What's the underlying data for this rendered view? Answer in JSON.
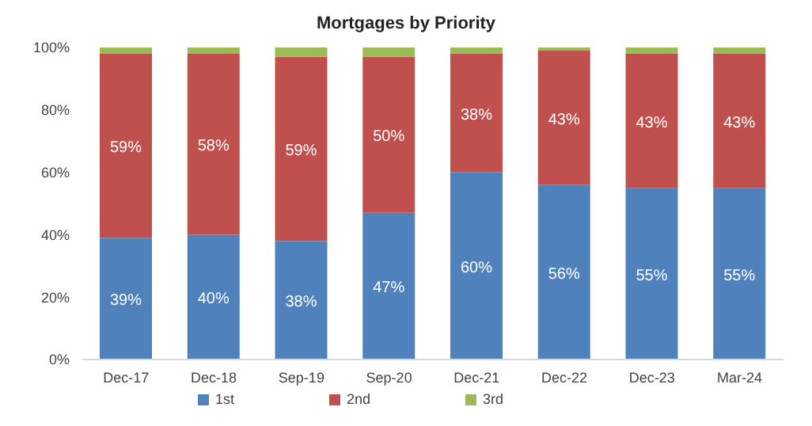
{
  "chart_data": {
    "type": "bar",
    "title": "Mortgages by Priority",
    "stacked": true,
    "categories": [
      "Dec-17",
      "Dec-18",
      "Sep-19",
      "Sep-20",
      "Dec-21",
      "Dec-22",
      "Dec-23",
      "Mar-24"
    ],
    "series": [
      {
        "name": "1st",
        "color": "#4f81bd",
        "values": [
          39,
          40,
          38,
          47,
          60,
          56,
          55,
          55
        ],
        "value_labels": [
          "39%",
          "40%",
          "38%",
          "47%",
          "60%",
          "56%",
          "55%",
          "55%"
        ]
      },
      {
        "name": "2nd",
        "color": "#c0504d",
        "values": [
          59,
          58,
          59,
          50,
          38,
          43,
          43,
          43
        ],
        "value_labels": [
          "59%",
          "58%",
          "59%",
          "50%",
          "38%",
          "43%",
          "43%",
          "43%"
        ]
      },
      {
        "name": "3rd",
        "color": "#9bbb59",
        "values": [
          2,
          2,
          3,
          3,
          2,
          1,
          2,
          2
        ]
      }
    ],
    "ylim": [
      0,
      100
    ],
    "yticks": [
      {
        "value": 0,
        "label": "0%"
      },
      {
        "value": 20,
        "label": "20%"
      },
      {
        "value": 40,
        "label": "40%"
      },
      {
        "value": 60,
        "label": "60%"
      },
      {
        "value": 80,
        "label": "80%"
      },
      {
        "value": 100,
        "label": "100%"
      }
    ],
    "grid": false,
    "legend": "bottom"
  }
}
